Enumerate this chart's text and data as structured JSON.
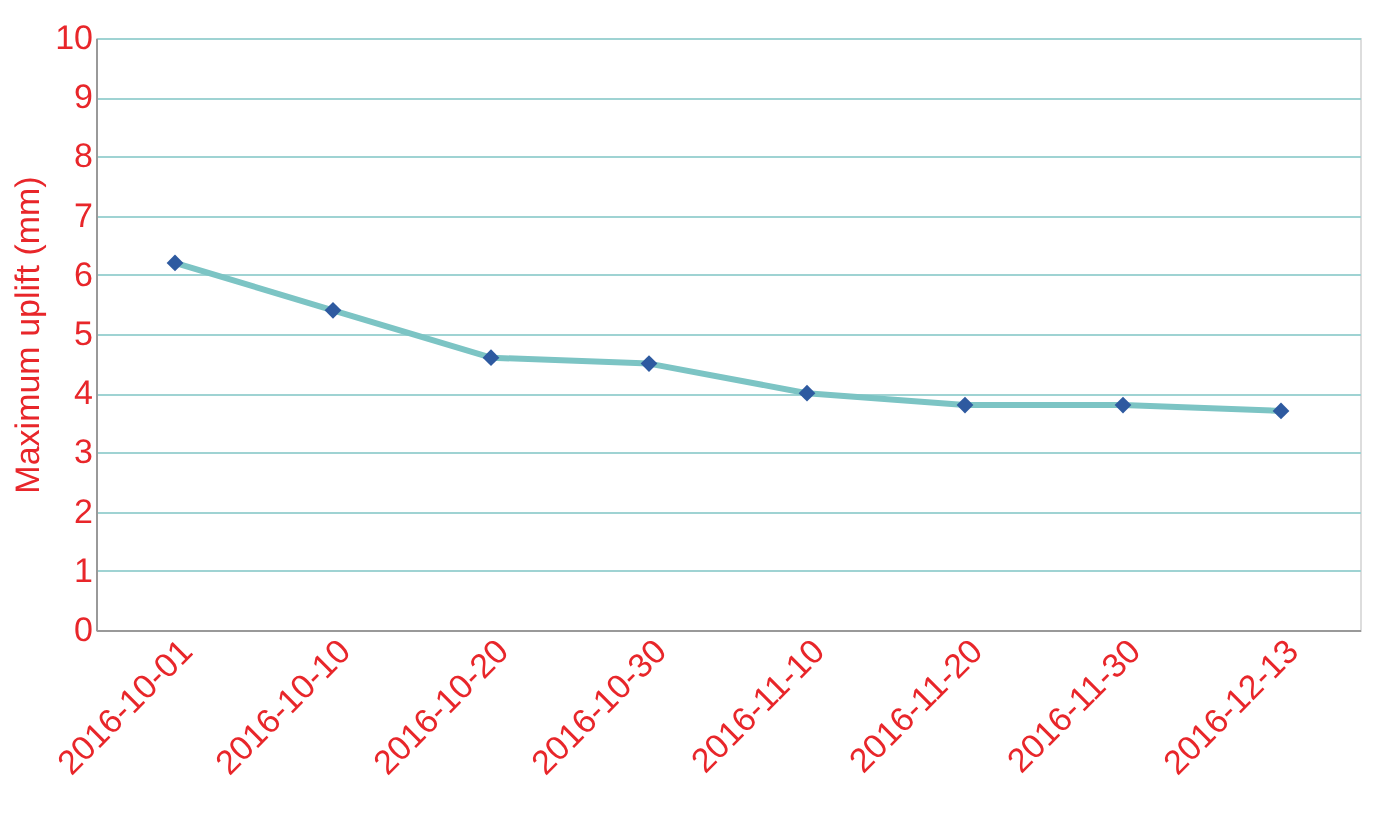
{
  "chart_data": {
    "type": "line",
    "ylabel": "Maximum uplift (mm)",
    "categories": [
      "2016-10-01",
      "2016-10-10",
      "2016-10-20",
      "2016-10-30",
      "2016-11-10",
      "2016-11-20",
      "2016-11-30",
      "2016-12-13"
    ],
    "series": [
      {
        "color": "#7cc4c4",
        "values": [
          6.2,
          5.4,
          4.6,
          4.5,
          4.0,
          3.8,
          3.8,
          3.7
        ]
      }
    ],
    "ylim": [
      0,
      10
    ],
    "yticks": [
      0,
      1,
      2,
      3,
      4,
      5,
      6,
      7,
      8,
      9,
      10
    ],
    "grid": "y",
    "marker": "diamond",
    "line_style": "solid"
  }
}
